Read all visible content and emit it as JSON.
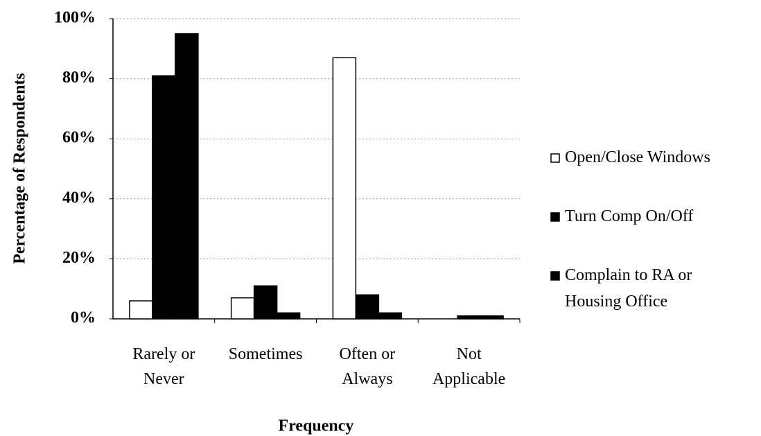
{
  "chart_data": {
    "type": "bar",
    "x_label": "Frequency",
    "y_label": "Percentage of Respondents",
    "categories": [
      "Rarely or Never",
      "Sometimes",
      "Often or Always",
      "Not Applicable"
    ],
    "series": [
      {
        "name": "Open/Close Windows",
        "color": "#ffffff",
        "values": [
          6,
          7,
          87,
          0
        ]
      },
      {
        "name": "Turn Comp On/Off",
        "color": "#000000",
        "values": [
          81,
          11,
          8,
          1
        ]
      },
      {
        "name": "Complain to RA or Housing Office",
        "color": "#000000",
        "values": [
          95,
          2,
          2,
          1
        ]
      }
    ],
    "ylim": [
      0,
      100
    ],
    "yticks": [
      {
        "value": 0,
        "label": "0%"
      },
      {
        "value": 20,
        "label": "20%"
      },
      {
        "value": 40,
        "label": "40%"
      },
      {
        "value": 60,
        "label": "60%"
      },
      {
        "value": 80,
        "label": "80%"
      },
      {
        "value": 100,
        "label": "100%"
      }
    ],
    "grid": true,
    "legend": "right"
  }
}
